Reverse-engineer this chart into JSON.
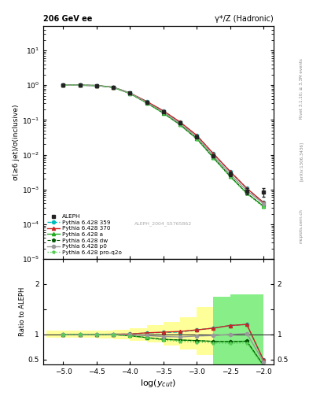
{
  "title_left": "206 GeV ee",
  "title_right": "γ*/Z (Hadronic)",
  "ylabel_main": "σ(≥6 jet)/σ(inclusive)",
  "ylabel_ratio": "Ratio to ALEPH",
  "xlabel": "log(y_{cut})",
  "watermark": "ALEPH_2004_S5765862",
  "right_label_top": "Rivet 3.1.10; ≥ 3.3M events",
  "right_label_mid": "[arXiv:1306.3436]",
  "right_label_bot": "mcplots.cern.ch",
  "xdata": [
    -5.0,
    -4.75,
    -4.5,
    -4.25,
    -4.0,
    -3.75,
    -3.5,
    -3.25,
    -3.0,
    -2.75,
    -2.5,
    -2.25,
    -2.0
  ],
  "aleph_y": [
    1.0,
    1.0,
    0.98,
    0.87,
    0.59,
    0.33,
    0.175,
    0.082,
    0.033,
    0.0095,
    0.0028,
    0.0009,
    0.00085
  ],
  "aleph_yerr": [
    0.005,
    0.005,
    0.012,
    0.015,
    0.015,
    0.012,
    0.01,
    0.006,
    0.003,
    0.001,
    0.0004,
    0.00018,
    0.00025
  ],
  "py359_y": [
    1.0,
    1.0,
    0.982,
    0.875,
    0.595,
    0.34,
    0.182,
    0.086,
    0.036,
    0.0107,
    0.0033,
    0.00108,
    0.00042
  ],
  "py370_y": [
    1.0,
    1.0,
    0.982,
    0.875,
    0.595,
    0.341,
    0.183,
    0.087,
    0.036,
    0.0107,
    0.0033,
    0.00108,
    0.00042
  ],
  "pya_y": [
    1.0,
    1.0,
    0.98,
    0.868,
    0.576,
    0.31,
    0.158,
    0.073,
    0.029,
    0.0082,
    0.0024,
    0.00078,
    0.00033
  ],
  "pydw_y": [
    1.0,
    1.0,
    0.98,
    0.868,
    0.576,
    0.31,
    0.158,
    0.073,
    0.029,
    0.0082,
    0.0024,
    0.00078,
    0.00033
  ],
  "pyp0_y": [
    1.0,
    1.0,
    0.981,
    0.872,
    0.585,
    0.323,
    0.168,
    0.078,
    0.032,
    0.0093,
    0.0028,
    0.00092,
    0.00039
  ],
  "pyproq2o_y": [
    1.0,
    1.0,
    0.98,
    0.866,
    0.572,
    0.307,
    0.155,
    0.071,
    0.028,
    0.0079,
    0.0023,
    0.00075,
    0.00031
  ],
  "ratio_py359": [
    1.0,
    1.0,
    1.002,
    1.006,
    1.008,
    1.03,
    1.04,
    1.049,
    1.091,
    1.126,
    1.179,
    1.2,
    0.494
  ],
  "ratio_py370": [
    1.0,
    1.0,
    1.002,
    1.006,
    1.008,
    1.033,
    1.046,
    1.061,
    1.091,
    1.126,
    1.179,
    1.2,
    0.494
  ],
  "ratio_pya": [
    1.0,
    1.0,
    1.0,
    0.998,
    0.976,
    0.939,
    0.903,
    0.89,
    0.879,
    0.863,
    0.857,
    0.867,
    0.388
  ],
  "ratio_pydw": [
    1.0,
    1.0,
    1.0,
    0.998,
    0.976,
    0.939,
    0.903,
    0.89,
    0.879,
    0.863,
    0.857,
    0.867,
    0.388
  ],
  "ratio_pyp0": [
    1.0,
    1.0,
    1.001,
    1.002,
    0.992,
    0.979,
    0.96,
    0.951,
    0.97,
    0.979,
    1.0,
    1.022,
    0.459
  ],
  "ratio_pyproq2o": [
    1.0,
    1.0,
    1.0,
    0.995,
    0.969,
    0.93,
    0.886,
    0.866,
    0.848,
    0.832,
    0.821,
    0.833,
    0.365
  ],
  "band_yellow_edges": [
    -5.25,
    -5.0,
    -4.75,
    -4.5,
    -4.25,
    -4.0,
    -3.75,
    -3.5,
    -3.25,
    -3.0,
    -2.75,
    -2.5,
    -2.25,
    -2.0
  ],
  "band_yellow_lo": [
    0.93,
    0.93,
    0.93,
    0.92,
    0.91,
    0.88,
    0.84,
    0.78,
    0.7,
    0.6,
    0.5,
    0.42,
    0.35
  ],
  "band_yellow_hi": [
    1.07,
    1.07,
    1.07,
    1.08,
    1.09,
    1.12,
    1.18,
    1.25,
    1.35,
    1.55,
    1.72,
    1.8,
    1.8
  ],
  "band_green_edges": [
    -2.75,
    -2.5,
    -2.25,
    -2.0
  ],
  "band_green_lo": [
    0.38,
    0.32,
    0.28
  ],
  "band_green_hi": [
    1.75,
    1.8,
    1.8
  ],
  "color_aleph": "#222222",
  "color_py359": "#00bbbb",
  "color_py370": "#cc2222",
  "color_pya": "#22aa22",
  "color_pydw": "#005500",
  "color_pyp0": "#999999",
  "color_pyproq2o": "#55cc55",
  "xlim": [
    -5.3,
    -1.85
  ],
  "ylim_main": [
    1e-05,
    50
  ],
  "ylim_ratio": [
    0.4,
    2.5
  ],
  "ratio_yticks": [
    0.5,
    1.0,
    1.5,
    2.0
  ],
  "ratio_yticklabels": [
    "0.5",
    "1",
    "",
    "2"
  ]
}
